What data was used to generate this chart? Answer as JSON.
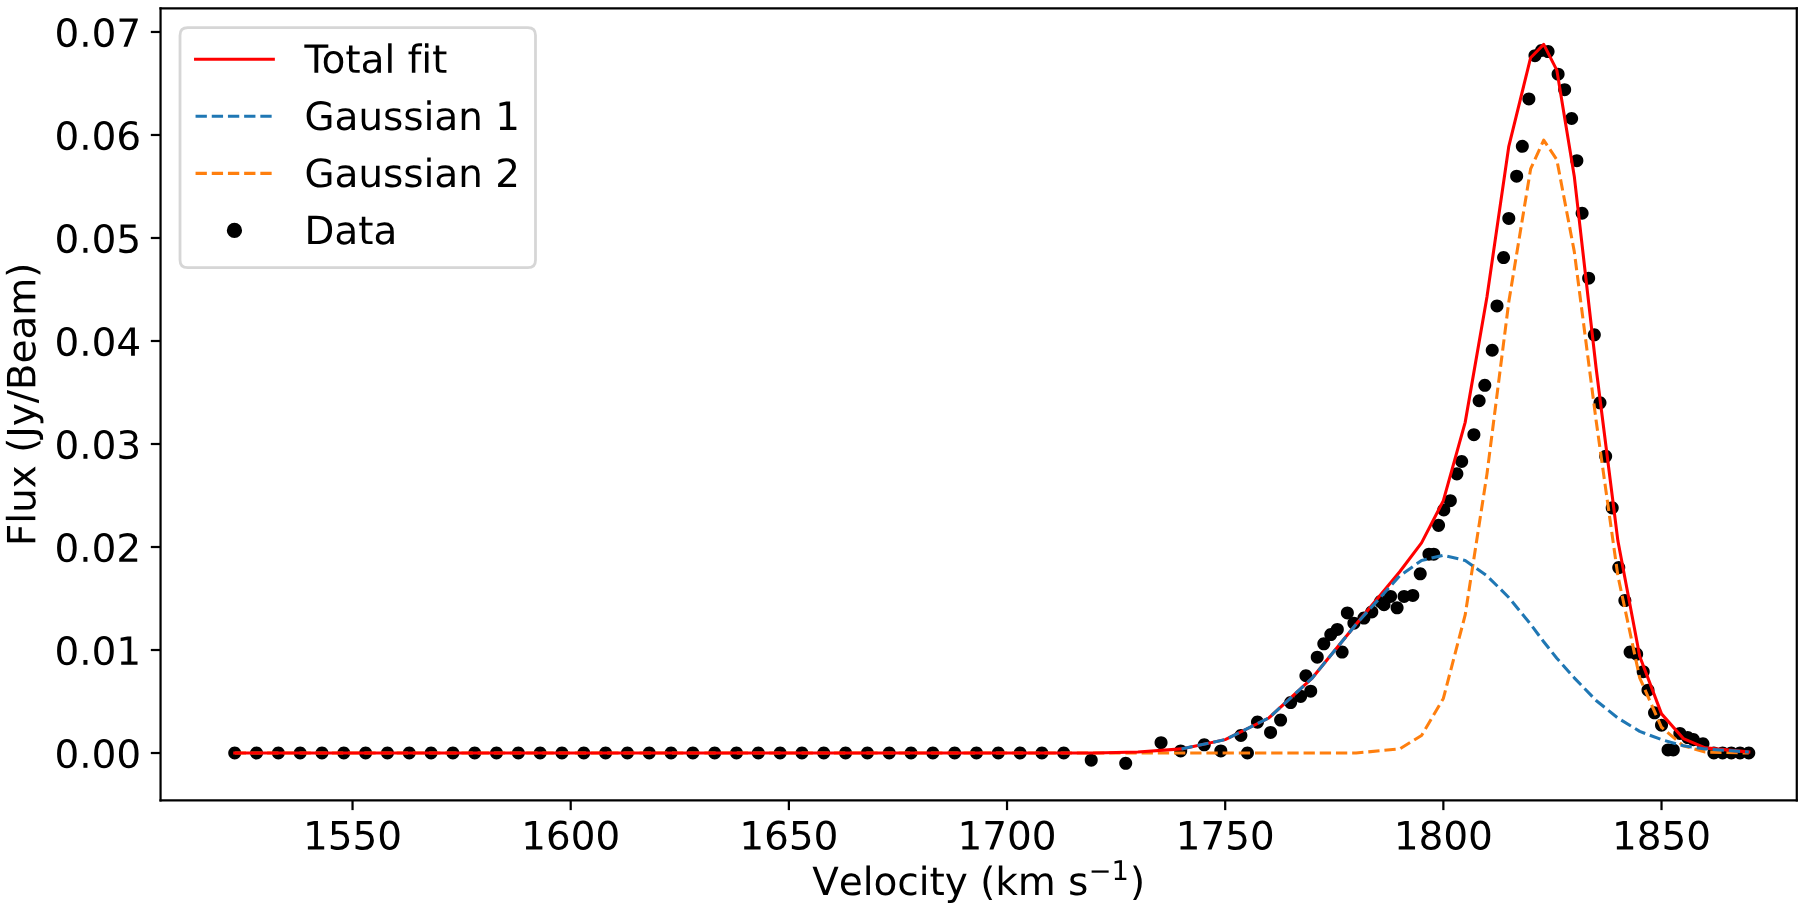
{
  "chart_data": {
    "type": "line",
    "xlabel": "Velocity (km s$^{−1}$)",
    "ylabel": "Flux (Jy/Beam)",
    "xlim": [
      1506,
      1881
    ],
    "ylim": [
      -0.0046,
      0.0723
    ],
    "xticks": [
      1550,
      1600,
      1650,
      1700,
      1750,
      1800,
      1850
    ],
    "yticks": [
      {
        "value": 0,
        "label": "0.00"
      },
      {
        "value": 0.01,
        "label": "0.01"
      },
      {
        "value": 0.02,
        "label": "0.02"
      },
      {
        "value": 0.03,
        "label": "0.03"
      },
      {
        "value": 0.04,
        "label": "0.04"
      },
      {
        "value": 0.05,
        "label": "0.05"
      },
      {
        "value": 0.06,
        "label": "0.06"
      },
      {
        "value": 0.07,
        "label": "0.07"
      }
    ],
    "grid": false,
    "legend": "top left",
    "series": [
      {
        "name": "Total fit",
        "color": "#ff0000",
        "line_style": "solid",
        "marker": "none",
        "x": [
          1523,
          1700,
          1720,
          1730,
          1740,
          1750,
          1760,
          1770,
          1780,
          1790,
          1795,
          1800,
          1805,
          1810,
          1815,
          1820,
          1823,
          1826,
          1830,
          1835,
          1840,
          1845,
          1850,
          1855,
          1860,
          1870
        ],
        "values": [
          0,
          0,
          0,
          0.0001,
          0.0004,
          0.0013,
          0.0034,
          0.0073,
          0.0125,
          0.0176,
          0.0204,
          0.0245,
          0.0321,
          0.0443,
          0.0589,
          0.0675,
          0.0688,
          0.0663,
          0.056,
          0.0374,
          0.0206,
          0.0094,
          0.0038,
          0.0014,
          0.0005,
          0.0001
        ]
      },
      {
        "name": "Gaussian 1",
        "color": "#1f77b4",
        "line_style": "dashed",
        "marker": "none",
        "x": [
          1740,
          1750,
          1760,
          1770,
          1780,
          1790,
          1795,
          1800,
          1805,
          1810,
          1815,
          1820,
          1823,
          1826,
          1830,
          1835,
          1840,
          1845,
          1850,
          1855,
          1860,
          1870
        ],
        "values": [
          0.0004,
          0.0013,
          0.0034,
          0.0073,
          0.0125,
          0.0172,
          0.0187,
          0.0192,
          0.0187,
          0.0172,
          0.0151,
          0.0125,
          0.0108,
          0.0092,
          0.0073,
          0.0051,
          0.0034,
          0.0021,
          0.0013,
          0.0007,
          0.0004,
          0.0001
        ]
      },
      {
        "name": "Gaussian 2",
        "color": "#ff7f0e",
        "line_style": "dashed",
        "marker": "none",
        "x": [
          1523,
          1700,
          1780,
          1790,
          1795,
          1800,
          1805,
          1810,
          1815,
          1820,
          1823,
          1826,
          1830,
          1835,
          1840,
          1845,
          1850,
          1855,
          1860,
          1870
        ],
        "values": [
          0,
          0,
          0,
          0.0004,
          0.0017,
          0.0053,
          0.0134,
          0.0271,
          0.0438,
          0.0567,
          0.0595,
          0.0576,
          0.0487,
          0.0323,
          0.0172,
          0.0073,
          0.0025,
          0.0007,
          0.0001,
          0
        ]
      },
      {
        "name": "Data",
        "type": "scatter",
        "color": "#000000",
        "marker": "circle",
        "x": [
          1523,
          1528,
          1533,
          1538,
          1543,
          1548,
          1553,
          1558,
          1563,
          1568,
          1573,
          1578,
          1583,
          1588,
          1593,
          1598,
          1603,
          1608,
          1613,
          1618,
          1623,
          1628,
          1633,
          1638,
          1643,
          1648,
          1653,
          1658,
          1663,
          1668,
          1673,
          1678,
          1683,
          1688,
          1693,
          1698,
          1703,
          1708,
          1713,
          1719.3,
          1727.2,
          1735.3,
          1739.8,
          1745.2,
          1749,
          1755.1,
          1753.6,
          1757.4,
          1760.4,
          1762.7,
          1765,
          1767.3,
          1769.6,
          1768.5,
          1771.1,
          1772.6,
          1774.2,
          1775.7,
          1776.8,
          1778,
          1779.5,
          1781.8,
          1783.6,
          1785.6,
          1786.4,
          1787.9,
          1789.4,
          1791,
          1793,
          1794.7,
          1796.7,
          1797.8,
          1798.9,
          1800.1,
          1801.6,
          1803.1,
          1804.2,
          1807,
          1808.2,
          1809.5,
          1811.2,
          1812.3,
          1813.8,
          1815,
          1816.8,
          1818.1,
          1819.6,
          1821,
          1822.5,
          1824,
          1826.3,
          1827.8,
          1829.4,
          1830.6,
          1831.8,
          1833.3,
          1834.6,
          1835.9,
          1837.2,
          1838.7,
          1840.2,
          1841.6,
          1842.8,
          1844.3,
          1845.8,
          1846.9,
          1848.4,
          1850,
          1851.5,
          1852.7,
          1854.2,
          1856,
          1857.3,
          1859.5,
          1862,
          1864,
          1866,
          1868,
          1870
        ],
        "values": [
          0,
          0,
          0,
          0,
          0,
          0,
          0,
          0,
          0,
          0,
          0,
          0,
          0,
          0,
          0,
          0,
          0,
          0,
          0,
          0,
          0,
          0,
          0,
          0,
          0,
          0,
          0,
          0,
          0,
          0,
          0,
          0,
          0,
          0,
          0,
          0,
          0,
          0,
          0,
          -0.0007,
          -0.001,
          0.001,
          0.0002,
          0.0008,
          0.0002,
          0,
          0.0017,
          0.003,
          0.002,
          0.0032,
          0.0049,
          0.0055,
          0.006,
          0.0075,
          0.0093,
          0.0106,
          0.0115,
          0.012,
          0.0098,
          0.0136,
          0.0126,
          0.0131,
          0.0137,
          0.0147,
          0.0144,
          0.0152,
          0.0141,
          0.0152,
          0.0153,
          0.0174,
          0.0193,
          0.0193,
          0.0221,
          0.0236,
          0.0245,
          0.0271,
          0.0283,
          0.0309,
          0.0342,
          0.0357,
          0.0391,
          0.0434,
          0.0481,
          0.0519,
          0.056,
          0.0589,
          0.0635,
          0.0677,
          0.0682,
          0.0681,
          0.0659,
          0.0644,
          0.0616,
          0.0575,
          0.0524,
          0.0461,
          0.0406,
          0.034,
          0.0288,
          0.0238,
          0.018,
          0.0148,
          0.0098,
          0.0096,
          0.0079,
          0.0061,
          0.0039,
          0.0027,
          0.0003,
          0.0003,
          0.0019,
          0.0015,
          0.0013,
          0.0009,
          0,
          0,
          0,
          0,
          0
        ]
      }
    ]
  }
}
